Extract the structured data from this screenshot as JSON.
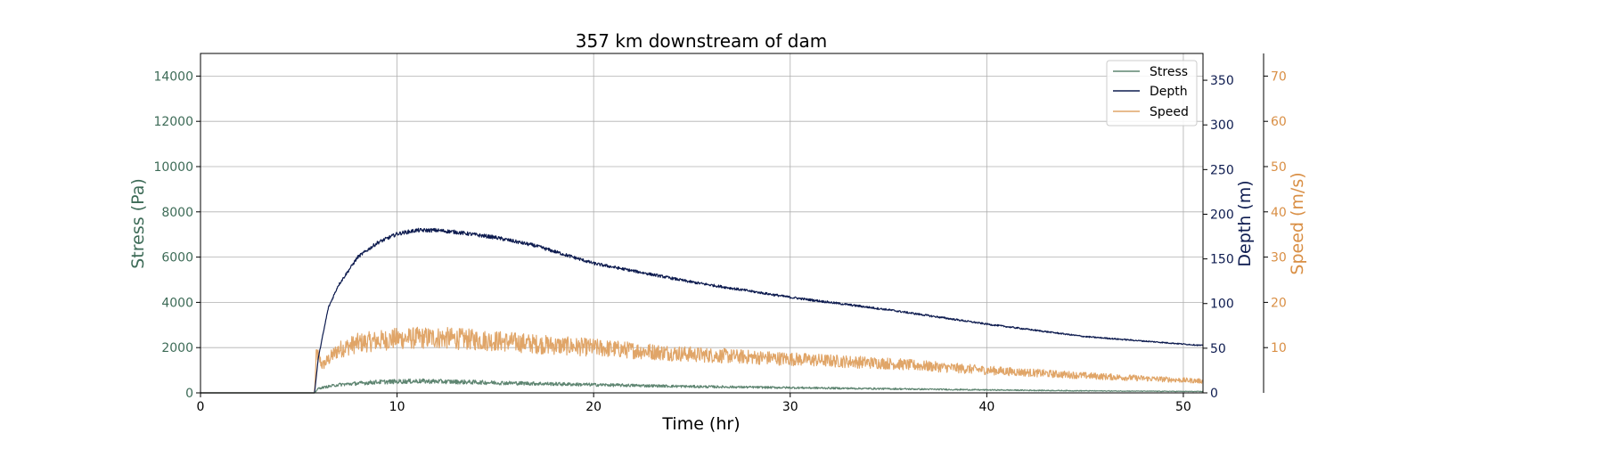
{
  "chart_data": {
    "type": "line",
    "title": "357 km downstream of dam",
    "xlabel": "Time (hr)",
    "xlim": [
      0,
      51
    ],
    "x_ticks": [
      "0",
      "10",
      "20",
      "30",
      "40",
      "50"
    ],
    "grid": true,
    "legend_position": "top-right",
    "axes": {
      "stress": {
        "label": "Stress (Pa)",
        "side": "left",
        "color": "#3d6b57",
        "ylim": [
          0,
          15000
        ],
        "ticks": [
          "0",
          "2000",
          "4000",
          "6000",
          "8000",
          "10000",
          "12000",
          "14000"
        ]
      },
      "depth": {
        "label": "Depth (m)",
        "side": "right",
        "color": "#0d1b4f",
        "ylim": [
          0,
          380
        ],
        "ticks": [
          "0",
          "50",
          "100",
          "150",
          "200",
          "250",
          "300",
          "350"
        ]
      },
      "speed": {
        "label": "Speed (m/s)",
        "side": "right-outer",
        "color": "#d98f45",
        "ylim": [
          0,
          75
        ],
        "ticks": [
          "10",
          "20",
          "30",
          "40",
          "50",
          "60",
          "70"
        ]
      }
    },
    "series": [
      {
        "name": "Stress",
        "axis": "stress",
        "color": "#5e8571",
        "noise": 0.2,
        "points": [
          [
            0,
            0
          ],
          [
            5.8,
            0
          ],
          [
            6.0,
            200
          ],
          [
            7,
            360
          ],
          [
            9,
            480
          ],
          [
            11,
            520
          ],
          [
            13,
            490
          ],
          [
            16,
            430
          ],
          [
            20,
            360
          ],
          [
            25,
            280
          ],
          [
            30,
            230
          ],
          [
            35,
            180
          ],
          [
            40,
            130
          ],
          [
            45,
            90
          ],
          [
            51,
            60
          ]
        ]
      },
      {
        "name": "Depth",
        "axis": "depth",
        "color": "#0d1b4f",
        "noise": 0.012,
        "points": [
          [
            0,
            0
          ],
          [
            5.8,
            0
          ],
          [
            6.0,
            40
          ],
          [
            6.5,
            95
          ],
          [
            7,
            120
          ],
          [
            8,
            152
          ],
          [
            9,
            168
          ],
          [
            10,
            178
          ],
          [
            11,
            182
          ],
          [
            12,
            182
          ],
          [
            13,
            180
          ],
          [
            15,
            174
          ],
          [
            17,
            165
          ],
          [
            20,
            145
          ],
          [
            25,
            124
          ],
          [
            30,
            107
          ],
          [
            35,
            93
          ],
          [
            40,
            77
          ],
          [
            45,
            63
          ],
          [
            51,
            53
          ]
        ]
      },
      {
        "name": "Speed",
        "axis": "speed",
        "color": "#e0a568",
        "noise": 0.2,
        "points": [
          [
            0,
            0
          ],
          [
            5.8,
            0
          ],
          [
            5.9,
            9
          ],
          [
            6.2,
            6
          ],
          [
            7,
            9.5
          ],
          [
            8,
            11
          ],
          [
            10,
            12
          ],
          [
            12,
            12.2
          ],
          [
            15,
            11.5
          ],
          [
            18,
            10.5
          ],
          [
            20,
            10
          ],
          [
            25,
            8.5
          ],
          [
            30,
            7.5
          ],
          [
            35,
            6.5
          ],
          [
            40,
            5
          ],
          [
            45,
            3.8
          ],
          [
            51,
            2.6
          ]
        ]
      }
    ]
  }
}
